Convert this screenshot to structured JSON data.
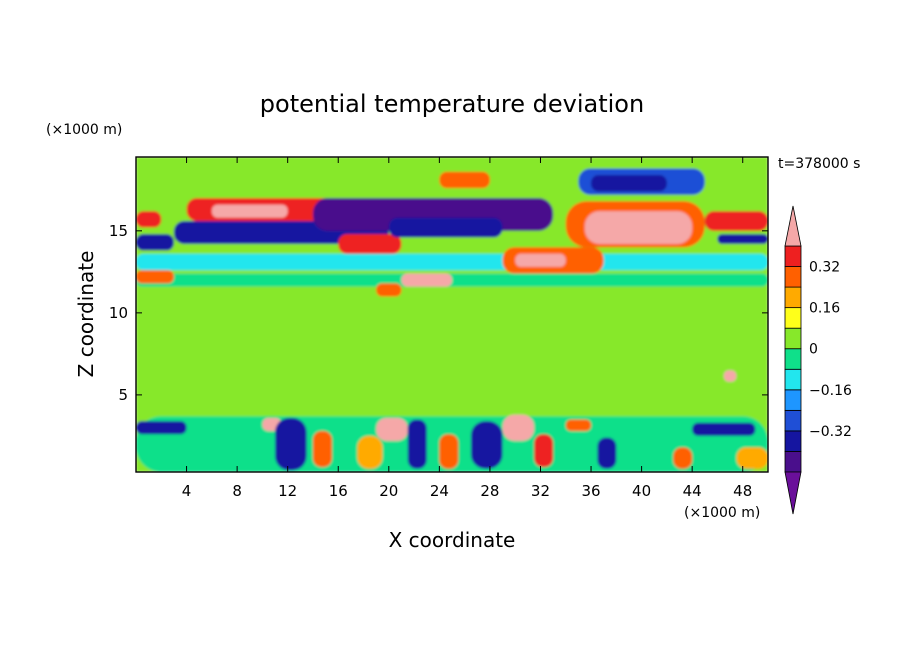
{
  "chart_data": {
    "type": "filled-contour",
    "title": "potential temperature deviation",
    "xlabel": "X coordinate",
    "ylabel": "Z coordinate",
    "x_unit_label": "(×1000 m)",
    "y_unit_label": "(×1000 m)",
    "time_label": "t=378000 s",
    "xlim": [
      0,
      50
    ],
    "ylim": [
      0.3,
      19.5
    ],
    "x_ticks": [
      4,
      8,
      12,
      16,
      20,
      24,
      28,
      32,
      36,
      40,
      44,
      48
    ],
    "x_tick_labels": [
      "4",
      "8",
      "12",
      "16",
      "20",
      "24",
      "28",
      "32",
      "36",
      "40",
      "44",
      "48"
    ],
    "y_ticks": [
      5,
      10,
      15
    ],
    "y_tick_labels": [
      "5",
      "10",
      "15"
    ],
    "colorbar": {
      "levels": [
        -0.48,
        -0.4,
        -0.32,
        -0.24,
        -0.16,
        -0.08,
        0,
        0.08,
        0.16,
        0.24,
        0.32,
        0.4
      ],
      "labels": [
        "0.32",
        "0.16",
        "0",
        "−0.16",
        "−0.32"
      ],
      "label_values": [
        0.32,
        0.16,
        0,
        -0.16,
        -0.32
      ],
      "colors": [
        "#4a0f8c",
        "#1515a0",
        "#1f4fd6",
        "#1e96ff",
        "#22e6ee",
        "#0fe08a",
        "#87e82a",
        "#ffff1a",
        "#ffaa00",
        "#ff6000",
        "#ee2020"
      ],
      "under_color": "#6a0f9a",
      "over_color": "#f5a8a8"
    },
    "regions": [
      {
        "x0": 0,
        "x1": 50,
        "z0": 0.3,
        "z1": 19.5,
        "value": 0.02
      },
      {
        "x0": 0,
        "x1": 50,
        "z0": 0.3,
        "z1": 3.7,
        "value": -0.04
      },
      {
        "x0": 0,
        "x1": 50,
        "z0": 5,
        "z1": 11,
        "value": 0.02
      },
      {
        "x0": 0,
        "x1": 50,
        "z0": 11.6,
        "z1": 12.4,
        "value": -0.06
      },
      {
        "x0": 0,
        "x1": 50,
        "z0": 12.6,
        "z1": 13.6,
        "value": -0.14
      },
      {
        "x0": 0,
        "x1": 4,
        "z0": 2.6,
        "z1": 3.4,
        "value": -0.4
      },
      {
        "x0": 10,
        "x1": 11.5,
        "z0": 2.8,
        "z1": 3.6,
        "value": 0.5
      },
      {
        "x0": 11,
        "x1": 13.5,
        "z0": 0.4,
        "z1": 3.6,
        "value": -0.36
      },
      {
        "x0": 14,
        "x1": 15.5,
        "z0": 0.6,
        "z1": 2.8,
        "value": 0.24
      },
      {
        "x0": 17.5,
        "x1": 19.5,
        "z0": 0.5,
        "z1": 2.5,
        "value": 0.2
      },
      {
        "x0": 19,
        "x1": 21.5,
        "z0": 2.2,
        "z1": 3.6,
        "value": 0.5
      },
      {
        "x0": 21.5,
        "x1": 23,
        "z0": 0.5,
        "z1": 3.5,
        "value": -0.36
      },
      {
        "x0": 24,
        "x1": 25.5,
        "z0": 0.5,
        "z1": 2.6,
        "value": 0.26
      },
      {
        "x0": 26.5,
        "x1": 29,
        "z0": 0.5,
        "z1": 3.4,
        "value": -0.4
      },
      {
        "x0": 29,
        "x1": 31.5,
        "z0": 2.2,
        "z1": 3.8,
        "value": 0.5
      },
      {
        "x0": 31.5,
        "x1": 33,
        "z0": 0.6,
        "z1": 2.6,
        "value": 0.34
      },
      {
        "x0": 34,
        "x1": 36,
        "z0": 2.8,
        "z1": 3.5,
        "value": 0.3
      },
      {
        "x0": 36.5,
        "x1": 38,
        "z0": 0.5,
        "z1": 2.4,
        "value": -0.34
      },
      {
        "x0": 42.5,
        "x1": 44,
        "z0": 0.5,
        "z1": 1.8,
        "value": 0.28
      },
      {
        "x0": 44,
        "x1": 49,
        "z0": 2.5,
        "z1": 3.3,
        "value": -0.4
      },
      {
        "x0": 47.5,
        "x1": 50,
        "z0": 0.5,
        "z1": 1.8,
        "value": 0.18
      },
      {
        "x0": 46.5,
        "x1": 47.5,
        "z0": 5.8,
        "z1": 6.5,
        "value": 0.5
      },
      {
        "x0": 0,
        "x1": 3,
        "z0": 13.8,
        "z1": 14.8,
        "value": -0.4
      },
      {
        "x0": 3,
        "x1": 20,
        "z0": 14.2,
        "z1": 15.6,
        "value": -0.4
      },
      {
        "x0": 0,
        "x1": 2,
        "z0": 15.2,
        "z1": 16.2,
        "value": 0.36
      },
      {
        "x0": 4,
        "x1": 19,
        "z0": 15.6,
        "z1": 17,
        "value": 0.32
      },
      {
        "x0": 6,
        "x1": 12,
        "z0": 15.8,
        "z1": 16.6,
        "value": 0.5
      },
      {
        "x0": 14,
        "x1": 33,
        "z0": 15,
        "z1": 17,
        "value": -0.42
      },
      {
        "x0": 16,
        "x1": 21,
        "z0": 13.6,
        "z1": 14.8,
        "value": 0.36
      },
      {
        "x0": 20,
        "x1": 29,
        "z0": 14.6,
        "z1": 15.8,
        "value": -0.4
      },
      {
        "x0": 24,
        "x1": 28,
        "z0": 17.6,
        "z1": 18.6,
        "value": 0.3
      },
      {
        "x0": 29,
        "x1": 37,
        "z0": 12.4,
        "z1": 14,
        "value": 0.26
      },
      {
        "x0": 30,
        "x1": 34,
        "z0": 12.8,
        "z1": 13.6,
        "value": 0.5
      },
      {
        "x0": 35,
        "x1": 45,
        "z0": 17.2,
        "z1": 18.8,
        "value": -0.26
      },
      {
        "x0": 36,
        "x1": 42,
        "z0": 17.4,
        "z1": 18.4,
        "value": -0.4
      },
      {
        "x0": 34,
        "x1": 45,
        "z0": 14,
        "z1": 16.8,
        "value": 0.3
      },
      {
        "x0": 35.5,
        "x1": 44,
        "z0": 14.2,
        "z1": 16.2,
        "value": 0.5
      },
      {
        "x0": 45,
        "x1": 50,
        "z0": 15,
        "z1": 16.2,
        "value": 0.36
      },
      {
        "x0": 46,
        "x1": 50,
        "z0": 14.2,
        "z1": 14.8,
        "value": -0.36
      },
      {
        "x0": 0,
        "x1": 3,
        "z0": 11.8,
        "z1": 12.6,
        "value": 0.3
      },
      {
        "x0": 21,
        "x1": 25,
        "z0": 11.6,
        "z1": 12.4,
        "value": 0.5
      },
      {
        "x0": 19,
        "x1": 21,
        "z0": 11,
        "z1": 11.8,
        "value": 0.3
      }
    ]
  }
}
